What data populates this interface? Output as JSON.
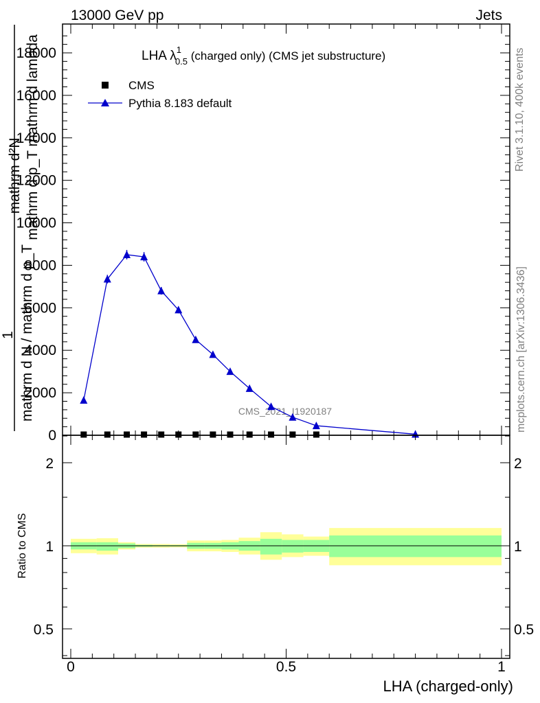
{
  "header": {
    "energy_label": "13000 GeV pp",
    "category_label": "Jets"
  },
  "side_labels": {
    "rivet": "Rivet 3.1.10,  400k events",
    "mcplots": "mcplots.cern.ch [arXiv:1306.3436]"
  },
  "watermark": "CMS_2021_I1920187",
  "chart_data": [
    {
      "type": "line",
      "panel": "main",
      "title": {
        "prefix": "LHA ",
        "symbol": "λ",
        "superscript": "1",
        "subscript": "0.5",
        "suffix": " (charged only) (CMS jet substructure)"
      },
      "ylabel_lines": [
        "mathrm d²N",
        "mathrm d p_T mathrm d lambda",
        "1",
        "mathrm d N / mathrm d p_T"
      ],
      "xlim": [
        0,
        1
      ],
      "ylim": [
        0,
        19000
      ],
      "yticks": [
        0,
        2000,
        4000,
        6000,
        8000,
        10000,
        12000,
        14000,
        16000,
        18000
      ],
      "ytick_labels": [
        "0",
        "2000",
        "4000",
        "6000",
        "8000",
        "10000",
        "12000",
        "14000",
        "16000",
        "18000"
      ],
      "legend": {
        "position": "top-left",
        "entries": [
          {
            "name": "CMS",
            "marker": "square",
            "color": "#000000"
          },
          {
            "name": "Pythia 8.183 default",
            "marker": "triangle",
            "color": "#0000cc"
          }
        ]
      },
      "series": [
        {
          "name": "CMS",
          "x": [
            0.03,
            0.085,
            0.13,
            0.17,
            0.21,
            0.25,
            0.29,
            0.33,
            0.37,
            0.415,
            0.465,
            0.515,
            0.57
          ],
          "y": [
            0,
            0,
            0,
            0,
            0,
            0,
            0,
            0,
            0,
            0,
            0,
            0,
            0
          ]
        },
        {
          "name": "Pythia 8.183 default",
          "x": [
            0.03,
            0.085,
            0.13,
            0.17,
            0.21,
            0.25,
            0.29,
            0.33,
            0.37,
            0.415,
            0.465,
            0.515,
            0.57,
            0.8
          ],
          "y": [
            1650,
            7350,
            8500,
            8400,
            6800,
            5900,
            4500,
            3800,
            3000,
            2200,
            1350,
            850,
            450,
            50
          ],
          "yerr": [
            80,
            200,
            220,
            220,
            180,
            160,
            120,
            110,
            90,
            70,
            50,
            40,
            30,
            20
          ]
        }
      ]
    },
    {
      "type": "area",
      "panel": "ratio",
      "ylabel": "Ratio to CMS",
      "scale": "log",
      "ylim": [
        0.4,
        2.5
      ],
      "yticks": [
        0.5,
        1,
        2
      ],
      "ytick_labels": [
        "0.5",
        "1",
        "2"
      ],
      "xlabel": "LHA (charged-only)",
      "xlim": [
        0,
        1
      ],
      "xticks": [
        0,
        0.5,
        1
      ],
      "xtick_labels": [
        "0",
        "0.5",
        "1"
      ],
      "bins": [
        {
          "lo": 0.0,
          "hi": 0.06,
          "green": [
            0.97,
            1.03
          ],
          "yellow": [
            0.94,
            1.06
          ]
        },
        {
          "lo": 0.06,
          "hi": 0.11,
          "green": [
            0.96,
            1.03
          ],
          "yellow": [
            0.93,
            1.065
          ]
        },
        {
          "lo": 0.11,
          "hi": 0.15,
          "green": [
            0.98,
            1.02
          ],
          "yellow": [
            0.97,
            1.03
          ]
        },
        {
          "lo": 0.15,
          "hi": 0.19,
          "green": [
            0.993,
            1.007
          ],
          "yellow": [
            0.985,
            1.015
          ]
        },
        {
          "lo": 0.19,
          "hi": 0.23,
          "green": [
            0.995,
            1.005
          ],
          "yellow": [
            0.985,
            1.015
          ]
        },
        {
          "lo": 0.23,
          "hi": 0.27,
          "green": [
            0.995,
            1.005
          ],
          "yellow": [
            0.987,
            1.013
          ]
        },
        {
          "lo": 0.27,
          "hi": 0.31,
          "green": [
            0.975,
            1.025
          ],
          "yellow": [
            0.955,
            1.045
          ]
        },
        {
          "lo": 0.31,
          "hi": 0.35,
          "green": [
            0.975,
            1.025
          ],
          "yellow": [
            0.955,
            1.045
          ]
        },
        {
          "lo": 0.35,
          "hi": 0.39,
          "green": [
            0.97,
            1.03
          ],
          "yellow": [
            0.95,
            1.05
          ]
        },
        {
          "lo": 0.39,
          "hi": 0.44,
          "green": [
            0.96,
            1.04
          ],
          "yellow": [
            0.93,
            1.07
          ]
        },
        {
          "lo": 0.44,
          "hi": 0.49,
          "green": [
            0.93,
            1.06
          ],
          "yellow": [
            0.89,
            1.12
          ]
        },
        {
          "lo": 0.49,
          "hi": 0.54,
          "green": [
            0.945,
            1.05
          ],
          "yellow": [
            0.91,
            1.1
          ]
        },
        {
          "lo": 0.54,
          "hi": 0.6,
          "green": [
            0.95,
            1.05
          ],
          "yellow": [
            0.92,
            1.08
          ]
        },
        {
          "lo": 0.6,
          "hi": 1.0,
          "green": [
            0.91,
            1.09
          ],
          "yellow": [
            0.85,
            1.16
          ]
        }
      ],
      "reference": 1
    }
  ]
}
